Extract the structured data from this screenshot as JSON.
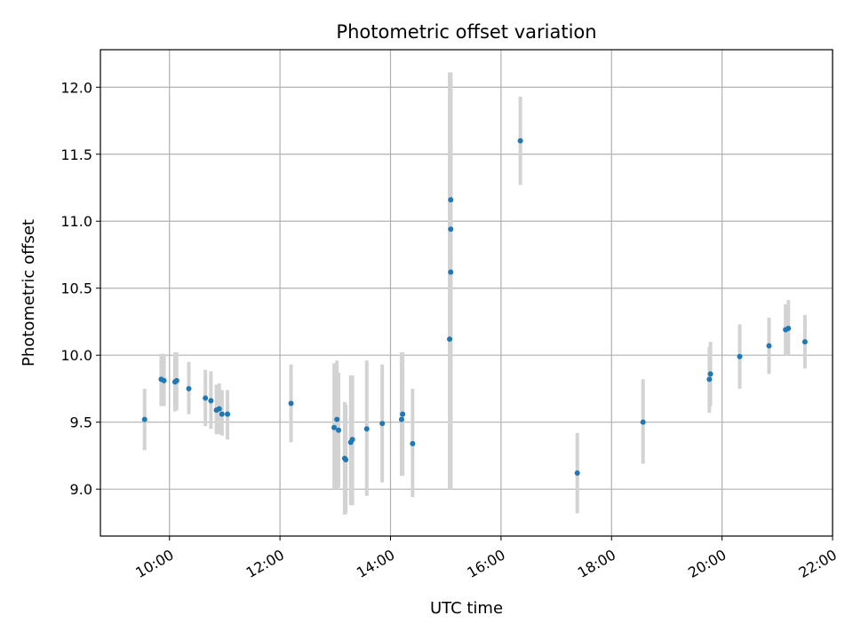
{
  "chart_data": {
    "type": "scatter",
    "title": "Photometric offset variation",
    "xlabel": "UTC time",
    "ylabel": "Photometric offset",
    "x_unit": "hours (UTC)",
    "xlim": [
      8.75,
      22.0
    ],
    "ylim": [
      8.65,
      12.28
    ],
    "x_ticks": [
      10,
      12,
      14,
      16,
      18,
      20,
      22
    ],
    "x_tick_labels": [
      "10:00",
      "12:00",
      "14:00",
      "16:00",
      "18:00",
      "20:00",
      "22:00"
    ],
    "y_ticks": [
      9.0,
      9.5,
      10.0,
      10.5,
      11.0,
      11.5,
      12.0
    ],
    "y_tick_labels": [
      "9.0",
      "9.5",
      "10.0",
      "10.5",
      "11.0",
      "11.5",
      "12.0"
    ],
    "grid": true,
    "marker_color": "#1f77b4",
    "errorbar_color": "#d3d3d3",
    "points": [
      {
        "x": 9.55,
        "y": 9.52,
        "lo": 9.29,
        "hi": 9.75
      },
      {
        "x": 9.85,
        "y": 9.82,
        "lo": 9.62,
        "hi": 10.01
      },
      {
        "x": 9.9,
        "y": 9.81,
        "lo": 9.62,
        "hi": 10.01
      },
      {
        "x": 10.1,
        "y": 9.8,
        "lo": 9.58,
        "hi": 10.02
      },
      {
        "x": 10.13,
        "y": 9.81,
        "lo": 9.59,
        "hi": 10.02
      },
      {
        "x": 10.35,
        "y": 9.75,
        "lo": 9.56,
        "hi": 9.95
      },
      {
        "x": 10.65,
        "y": 9.68,
        "lo": 9.47,
        "hi": 9.89
      },
      {
        "x": 10.75,
        "y": 9.66,
        "lo": 9.45,
        "hi": 9.88
      },
      {
        "x": 10.85,
        "y": 9.59,
        "lo": 9.41,
        "hi": 9.78
      },
      {
        "x": 10.9,
        "y": 9.6,
        "lo": 9.41,
        "hi": 9.79
      },
      {
        "x": 10.95,
        "y": 9.56,
        "lo": 9.4,
        "hi": 9.74
      },
      {
        "x": 11.05,
        "y": 9.56,
        "lo": 9.37,
        "hi": 9.74
      },
      {
        "x": 12.2,
        "y": 9.64,
        "lo": 9.35,
        "hi": 9.93
      },
      {
        "x": 12.98,
        "y": 9.46,
        "lo": 9.0,
        "hi": 9.94
      },
      {
        "x": 13.03,
        "y": 9.52,
        "lo": 9.0,
        "hi": 9.96
      },
      {
        "x": 13.06,
        "y": 9.44,
        "lo": 9.01,
        "hi": 9.87
      },
      {
        "x": 13.17,
        "y": 9.23,
        "lo": 8.81,
        "hi": 9.65
      },
      {
        "x": 13.19,
        "y": 9.22,
        "lo": 8.82,
        "hi": 9.63
      },
      {
        "x": 13.28,
        "y": 9.35,
        "lo": 8.88,
        "hi": 9.85
      },
      {
        "x": 13.31,
        "y": 9.37,
        "lo": 8.88,
        "hi": 9.85
      },
      {
        "x": 13.57,
        "y": 9.45,
        "lo": 8.95,
        "hi": 9.96
      },
      {
        "x": 13.85,
        "y": 9.49,
        "lo": 9.05,
        "hi": 9.93
      },
      {
        "x": 14.2,
        "y": 9.52,
        "lo": 9.1,
        "hi": 10.02
      },
      {
        "x": 14.22,
        "y": 9.56,
        "lo": 9.1,
        "hi": 10.02
      },
      {
        "x": 14.4,
        "y": 9.34,
        "lo": 8.94,
        "hi": 9.75
      },
      {
        "x": 15.07,
        "y": 10.12,
        "lo": 9.0,
        "hi": 12.11
      },
      {
        "x": 15.09,
        "y": 10.62,
        "lo": 9.0,
        "hi": 12.11
      },
      {
        "x": 15.09,
        "y": 10.94,
        "lo": 9.0,
        "hi": 12.11
      },
      {
        "x": 15.09,
        "y": 11.16,
        "lo": 9.0,
        "hi": 12.11
      },
      {
        "x": 16.35,
        "y": 11.6,
        "lo": 11.27,
        "hi": 11.93
      },
      {
        "x": 17.38,
        "y": 9.12,
        "lo": 8.82,
        "hi": 9.42
      },
      {
        "x": 18.57,
        "y": 9.5,
        "lo": 9.19,
        "hi": 9.82
      },
      {
        "x": 19.77,
        "y": 9.82,
        "lo": 9.57,
        "hi": 10.06
      },
      {
        "x": 19.79,
        "y": 9.86,
        "lo": 9.62,
        "hi": 10.1
      },
      {
        "x": 20.32,
        "y": 9.99,
        "lo": 9.75,
        "hi": 10.23
      },
      {
        "x": 20.85,
        "y": 10.07,
        "lo": 9.86,
        "hi": 10.28
      },
      {
        "x": 21.15,
        "y": 10.19,
        "lo": 10.0,
        "hi": 10.38
      },
      {
        "x": 21.2,
        "y": 10.2,
        "lo": 10.0,
        "hi": 10.41
      },
      {
        "x": 21.5,
        "y": 10.1,
        "lo": 9.9,
        "hi": 10.3
      }
    ]
  }
}
